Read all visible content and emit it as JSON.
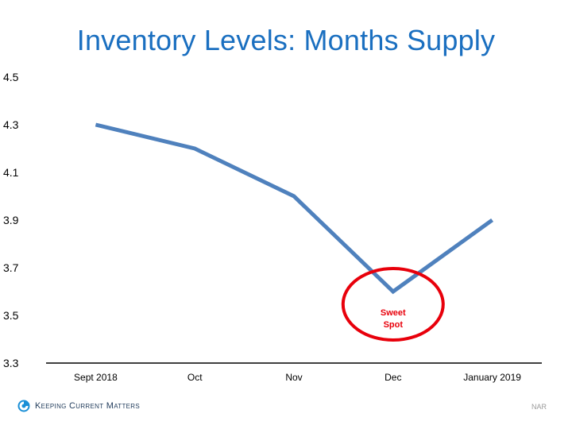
{
  "chart_data": {
    "type": "line",
    "title": "Inventory Levels: Months Supply",
    "categories": [
      "Sept 2018",
      "Oct",
      "Nov",
      "Dec",
      "January 2019"
    ],
    "series": [
      {
        "values": [
          4.3,
          4.2,
          4.0,
          3.6,
          3.9
        ],
        "color": "#4f81bd"
      }
    ],
    "ylim": [
      3.3,
      4.5
    ],
    "yticks": [
      "4.5",
      "4.3",
      "4.1",
      "3.9",
      "3.7",
      "3.5",
      "3.3"
    ],
    "xlabel": "",
    "ylabel": "",
    "grid": false,
    "annotation": {
      "text_line1": "Sweet",
      "text_line2": "Spot",
      "category": "Dec",
      "color": "#e8000b"
    }
  },
  "footer": {
    "brand": "Keeping Current Matters",
    "brand_icon": "kcm-swirl-icon",
    "source": "NAR"
  }
}
